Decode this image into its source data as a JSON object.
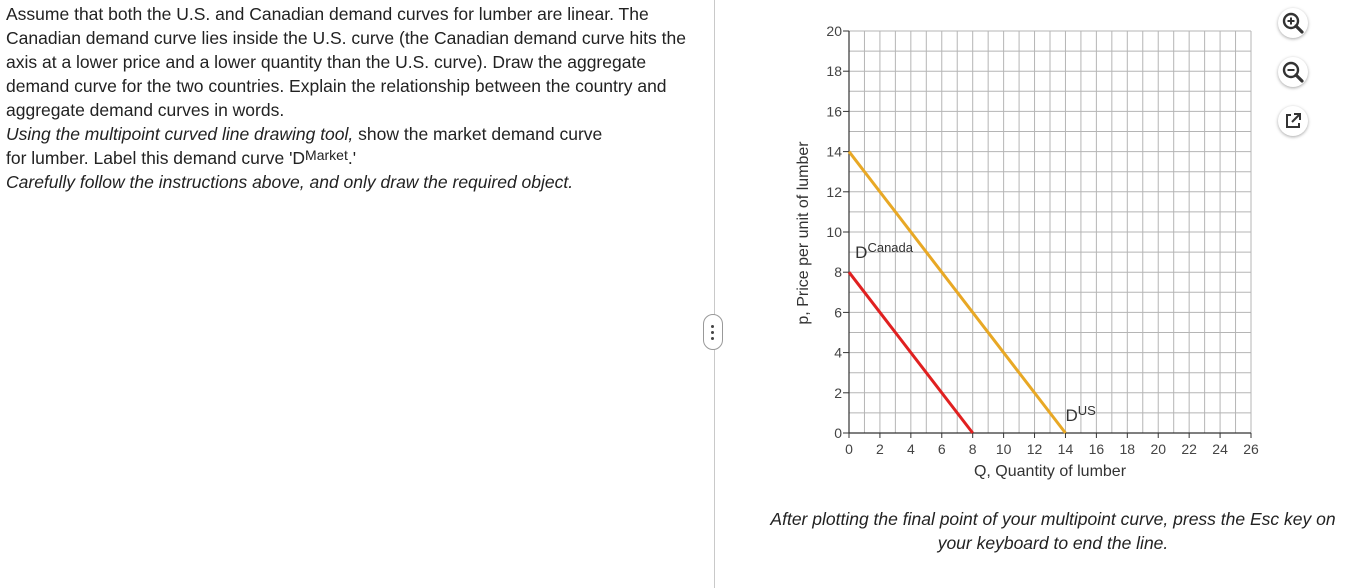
{
  "question": {
    "paragraph1": "Assume that both the U.S. and Canadian demand curves for lumber are linear.  The Canadian demand curve lies inside the U.S. curve (the Canadian demand curve hits the axis at a lower price and a lower quantity than the U.S. curve).  Draw the aggregate demand curve for the two countries. Explain the relationship between the country and aggregate demand curves in words.",
    "instr_italic": "Using the multipoint curved line drawing tool,",
    "instr_rest1": " show the market demand curve",
    "instr_line2_pre": "for lumber.  Label this demand curve 'D",
    "instr_sup": "Market",
    "instr_line2_post": ".'",
    "paragraph3": "Carefully follow the instructions above, and only draw the required object."
  },
  "footer": "After plotting the final point of your multipoint curve, press the Esc key on your keyboard to end the line.",
  "tools": {
    "zoom_in": "zoom-in-icon",
    "zoom_out": "zoom-out-icon",
    "popout": "external-link-icon"
  },
  "chart_data": {
    "type": "line",
    "xlabel": "Q, Quantity of lumber",
    "ylabel": "p, Price per unit of lumber",
    "xlim": [
      0,
      26
    ],
    "ylim": [
      0,
      20
    ],
    "x_ticks": [
      0,
      2,
      4,
      6,
      8,
      10,
      12,
      14,
      16,
      18,
      20,
      22,
      24,
      26
    ],
    "y_ticks": [
      0,
      2,
      4,
      6,
      8,
      10,
      12,
      14,
      16,
      18,
      20
    ],
    "grid": true,
    "series": [
      {
        "name": "D",
        "sup": "US",
        "color": "#e8a825",
        "points": [
          [
            0,
            14
          ],
          [
            14,
            0
          ]
        ],
        "label_at": [
          14,
          0.6
        ]
      },
      {
        "name": "D",
        "sup": "Canada",
        "color": "#e02020",
        "points": [
          [
            0,
            8
          ],
          [
            8,
            0
          ]
        ],
        "label_at": [
          0.4,
          8.7
        ]
      }
    ]
  }
}
